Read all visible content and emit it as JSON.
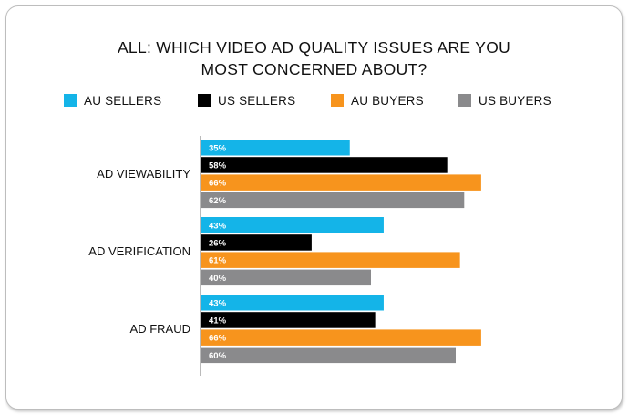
{
  "chart_data": {
    "type": "bar",
    "orientation": "horizontal",
    "title": "ALL: WHICH VIDEO AD QUALITY ISSUES ARE YOU MOST CONCERNED ABOUT?",
    "title_lines": [
      "ALL: WHICH VIDEO AD QUALITY ISSUES ARE YOU",
      "MOST CONCERNED ABOUT?"
    ],
    "categories": [
      "AD VIEWABILITY",
      "AD VERIFICATION",
      "AD FRAUD"
    ],
    "series": [
      {
        "name": "AU SELLERS",
        "color": "#14b4e8",
        "values": [
          35,
          43,
          43
        ]
      },
      {
        "name": "US SELLERS",
        "color": "#000000",
        "values": [
          58,
          26,
          41
        ]
      },
      {
        "name": "AU BUYERS",
        "color": "#f7941d",
        "values": [
          66,
          61,
          66
        ]
      },
      {
        "name": "US BUYERS",
        "color": "#8a8a8c",
        "values": [
          62,
          40,
          60
        ]
      }
    ],
    "value_suffix": "%",
    "xlim": [
      0,
      100
    ],
    "grid": false,
    "legend_position": "top"
  }
}
